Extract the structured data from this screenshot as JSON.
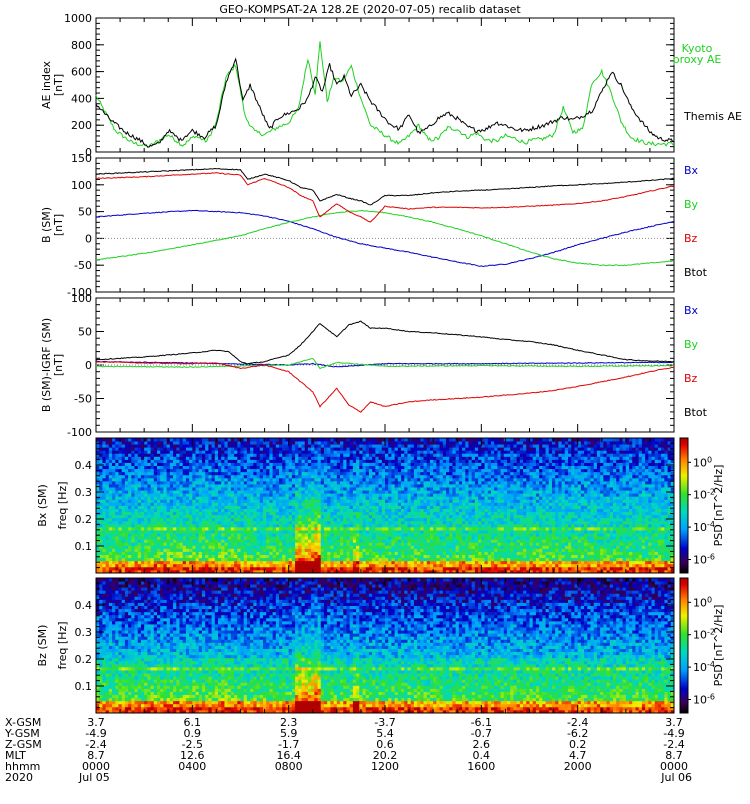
{
  "title": "GEO-KOMPSAT-2A 128.2E (2020-07-05) recalib dataset",
  "colors": {
    "black": "#000000",
    "blue": "#0000c8",
    "green": "#20d020",
    "red": "#e00000"
  },
  "chart_data": [
    {
      "type": "line",
      "panel": "ae",
      "ylabel": "AE index",
      "yunit": "[nT]",
      "ylim": [
        0,
        1000
      ],
      "yticks": [
        0,
        200,
        400,
        600,
        800,
        1000
      ],
      "xlim_hours": [
        0,
        24
      ],
      "series": [
        {
          "name": "Kyoto proxy AE",
          "color": "#20d020",
          "x": [
            0,
            0.8,
            1.5,
            2.2,
            3.0,
            3.6,
            4.1,
            4.6,
            5.0,
            5.4,
            5.8,
            6.2,
            6.6,
            7.0,
            7.5,
            8.0,
            8.4,
            8.8,
            9.1,
            9.3,
            9.6,
            9.9,
            10.2,
            10.6,
            11.0,
            11.4,
            11.8,
            12.2,
            12.6,
            13.0,
            13.4,
            13.8,
            14.2,
            14.6,
            15.0,
            15.4,
            15.8,
            16.2,
            16.6,
            17.0,
            17.4,
            17.8,
            18.2,
            18.6,
            19.0,
            19.4,
            19.8,
            20.2,
            20.6,
            21.0,
            21.4,
            21.8,
            22.2,
            22.6,
            23.0,
            23.4,
            24
          ],
          "values": [
            420,
            160,
            70,
            40,
            130,
            50,
            120,
            80,
            220,
            560,
            650,
            260,
            150,
            130,
            180,
            220,
            320,
            700,
            440,
            820,
            380,
            560,
            520,
            640,
            400,
            200,
            150,
            100,
            60,
            120,
            200,
            90,
            100,
            180,
            170,
            110,
            140,
            90,
            80,
            120,
            100,
            70,
            90,
            100,
            130,
            330,
            150,
            170,
            520,
            600,
            440,
            230,
            110,
            80,
            60,
            60,
            60
          ]
        },
        {
          "name": "Themis AE",
          "color": "#000000",
          "x": [
            0,
            0.6,
            1.2,
            1.8,
            2.2,
            2.6,
            3.0,
            3.5,
            4.0,
            4.5,
            5.0,
            5.4,
            5.8,
            6.1,
            6.4,
            6.8,
            7.2,
            7.6,
            8.0,
            8.4,
            8.8,
            9.1,
            9.4,
            9.7,
            10.0,
            10.3,
            10.6,
            11.0,
            11.4,
            11.8,
            12.2,
            12.6,
            13.0,
            13.4,
            13.8,
            14.2,
            14.6,
            15.0,
            15.4,
            15.8,
            16.2,
            16.6,
            17.0,
            17.4,
            17.8,
            18.2,
            18.6,
            19.0,
            19.4,
            19.8,
            20.2,
            20.6,
            21.0,
            21.4,
            21.8,
            22.2,
            22.6,
            23.0,
            23.4,
            24
          ],
          "values": [
            360,
            240,
            150,
            90,
            40,
            60,
            160,
            90,
            160,
            110,
            200,
            520,
            700,
            380,
            500,
            330,
            170,
            260,
            290,
            320,
            400,
            560,
            450,
            650,
            500,
            560,
            420,
            500,
            380,
            290,
            210,
            170,
            280,
            140,
            180,
            250,
            290,
            250,
            190,
            160,
            170,
            220,
            200,
            170,
            160,
            180,
            200,
            230,
            260,
            240,
            270,
            310,
            450,
            600,
            500,
            340,
            240,
            150,
            100,
            80
          ]
        }
      ]
    },
    {
      "type": "line",
      "panel": "b_sm",
      "ylabel": "B (SM)",
      "yunit": "[nT]",
      "ylim": [
        -100,
        150
      ],
      "yticks": [
        -100,
        -50,
        0,
        50,
        100,
        150
      ],
      "xlim_hours": [
        0,
        24
      ],
      "series": [
        {
          "name": "Bx",
          "color": "#0000c8",
          "x": [
            0,
            2,
            4,
            6,
            7,
            8,
            9,
            10,
            11,
            12,
            13,
            14,
            15,
            16,
            17,
            18,
            19,
            20,
            21,
            22,
            23,
            24
          ],
          "values": [
            40,
            47,
            52,
            48,
            42,
            32,
            18,
            2,
            -10,
            -18,
            -26,
            -35,
            -44,
            -52,
            -48,
            -38,
            -26,
            -12,
            0,
            12,
            22,
            32
          ]
        },
        {
          "name": "By",
          "color": "#20d020",
          "x": [
            0,
            2,
            4,
            6,
            7,
            8,
            9,
            10,
            11,
            12,
            13,
            14,
            15,
            16,
            17,
            18,
            19,
            20,
            21,
            22,
            23,
            24
          ],
          "values": [
            -40,
            -28,
            -12,
            5,
            18,
            30,
            40,
            48,
            52,
            48,
            40,
            30,
            18,
            5,
            -10,
            -25,
            -38,
            -46,
            -50,
            -50,
            -46,
            -42
          ]
        },
        {
          "name": "Bz",
          "color": "#e00000",
          "x": [
            0,
            2,
            4,
            5,
            6,
            6.3,
            7,
            8,
            8.5,
            9.0,
            9.3,
            10,
            10.5,
            11.0,
            11.4,
            12,
            13,
            14,
            15,
            16,
            17,
            18,
            19,
            20,
            21,
            22,
            23,
            24
          ],
          "values": [
            112,
            115,
            120,
            122,
            118,
            100,
            112,
            95,
            80,
            70,
            40,
            65,
            50,
            40,
            30,
            60,
            55,
            58,
            58,
            57,
            58,
            60,
            62,
            65,
            70,
            78,
            88,
            98
          ]
        },
        {
          "name": "Btot",
          "color": "#000000",
          "x": [
            0,
            2,
            4,
            5,
            6,
            6.3,
            7,
            8,
            8.5,
            9.0,
            9.3,
            10,
            10.5,
            11.0,
            11.4,
            12,
            13,
            14,
            15,
            16,
            17,
            18,
            19,
            20,
            21,
            22,
            23,
            24
          ],
          "values": [
            120,
            124,
            128,
            130,
            128,
            110,
            120,
            108,
            95,
            90,
            70,
            82,
            75,
            70,
            62,
            80,
            80,
            85,
            88,
            90,
            92,
            95,
            98,
            100,
            102,
            105,
            108,
            112
          ]
        }
      ]
    },
    {
      "type": "line",
      "panel": "b_sm_minus_igrf",
      "ylabel": "B (SM)-IGRF (SM)",
      "yunit": "[nT]",
      "ylim": [
        -100,
        100
      ],
      "yticks": [
        -100,
        -50,
        0,
        50,
        100
      ],
      "xlim_hours": [
        0,
        24
      ],
      "series": [
        {
          "name": "Bx",
          "color": "#0000c8",
          "x": [
            0,
            4,
            8,
            9,
            10,
            12,
            16,
            20,
            24
          ],
          "values": [
            5,
            3,
            0,
            2,
            -3,
            2,
            2,
            3,
            4
          ]
        },
        {
          "name": "By",
          "color": "#20d020",
          "x": [
            0,
            4,
            8,
            9.0,
            9.3,
            10,
            12,
            16,
            20,
            24
          ],
          "values": [
            -2,
            -3,
            0,
            10,
            -5,
            4,
            -2,
            -1,
            -2,
            -1
          ]
        },
        {
          "name": "Bz",
          "color": "#e00000",
          "x": [
            0,
            2,
            4,
            5,
            6,
            7,
            8,
            8.5,
            9.0,
            9.3,
            10,
            10.5,
            11,
            11.4,
            12,
            13,
            14,
            15,
            16,
            17,
            18,
            19,
            20,
            21,
            22,
            23,
            24
          ],
          "values": [
            5,
            3,
            2,
            3,
            -5,
            0,
            -10,
            -25,
            -40,
            -62,
            -35,
            -60,
            -70,
            -55,
            -62,
            -55,
            -52,
            -50,
            -48,
            -45,
            -42,
            -38,
            -32,
            -25,
            -18,
            -10,
            -3
          ]
        },
        {
          "name": "Btot",
          "color": "#000000",
          "x": [
            0,
            1,
            2,
            3,
            4,
            5,
            5.5,
            6,
            6.3,
            7,
            8,
            8.5,
            9.0,
            9.3,
            10,
            10.5,
            11,
            11.4,
            12,
            13,
            14,
            15,
            16,
            17,
            18,
            19,
            20,
            21,
            22,
            23,
            24
          ],
          "values": [
            8,
            10,
            12,
            15,
            18,
            22,
            20,
            5,
            2,
            5,
            15,
            30,
            50,
            62,
            42,
            60,
            65,
            55,
            55,
            50,
            48,
            45,
            42,
            38,
            35,
            30,
            22,
            15,
            8,
            6,
            5
          ]
        }
      ]
    },
    {
      "type": "heatmap",
      "panel": "bx_spectrogram",
      "ylabel": "Bx (SM)",
      "yunit": "freq [Hz]",
      "ylim": [
        0,
        0.5
      ],
      "yticks": [
        0.1,
        0.2,
        0.3,
        0.4
      ],
      "colorbar_label": "PSD [nT^2/Hz]",
      "colorbar_ticks": [
        "10^0",
        "10^-2",
        "10^-4",
        "10^-6"
      ],
      "xlim_hours": [
        0,
        24
      ]
    },
    {
      "type": "heatmap",
      "panel": "bz_spectrogram",
      "ylabel": "Bz (SM)",
      "yunit": "freq [Hz]",
      "ylim": [
        0,
        0.5
      ],
      "yticks": [
        0.1,
        0.2,
        0.3,
        0.4
      ],
      "colorbar_label": "PSD [nT^2/Hz]",
      "colorbar_ticks": [
        "10^0",
        "10^-2",
        "10^-4",
        "10^-6"
      ],
      "xlim_hours": [
        0,
        24
      ]
    }
  ],
  "ephemeris": {
    "row_labels": [
      "X-GSM",
      "Y-GSM",
      "Z-GSM",
      "MLT",
      "hhmm",
      "2020"
    ],
    "columns": [
      [
        "3.7",
        "-4.9",
        "-2.4",
        "8.7",
        "0000",
        "Jul 05"
      ],
      [
        "6.1",
        "0.9",
        "-2.5",
        "12.6",
        "0400",
        ""
      ],
      [
        "2.3",
        "5.9",
        "-1.7",
        "16.4",
        "0800",
        ""
      ],
      [
        "-3.7",
        "5.4",
        "0.6",
        "20.2",
        "1200",
        ""
      ],
      [
        "-6.1",
        "-0.7",
        "2.6",
        "0.4",
        "1600",
        ""
      ],
      [
        "-2.4",
        "-6.2",
        "0.2",
        "4.7",
        "2000",
        ""
      ],
      [
        "3.7",
        "-4.9",
        "-2.4",
        "8.7",
        "0000",
        "Jul 06"
      ]
    ]
  }
}
